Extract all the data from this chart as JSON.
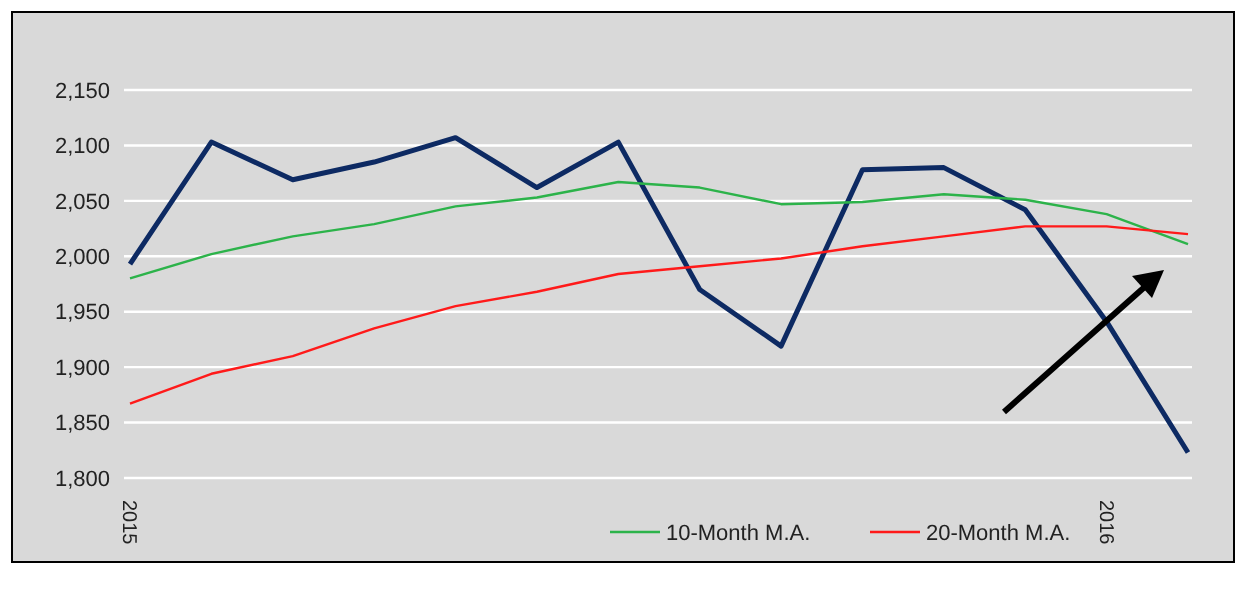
{
  "chart_data": {
    "type": "line",
    "categories": [
      "2015",
      null,
      null,
      null,
      null,
      null,
      null,
      null,
      null,
      null,
      null,
      null,
      "2016",
      null
    ],
    "ylim": [
      1800,
      2150
    ],
    "yticks": [
      {
        "value": 1800,
        "label": "1,800"
      },
      {
        "value": 1850,
        "label": "1,850"
      },
      {
        "value": 1900,
        "label": "1,900"
      },
      {
        "value": 1950,
        "label": "1,950"
      },
      {
        "value": 2000,
        "label": "2,000"
      },
      {
        "value": 2050,
        "label": "2,050"
      },
      {
        "value": 2100,
        "label": "2,100"
      },
      {
        "value": 2150,
        "label": "2,150"
      }
    ],
    "grid": "y",
    "legend": "bottom",
    "line_style": "solid",
    "series": [
      {
        "color": "#0d2a63",
        "values": [
          1993,
          2103,
          2069,
          2085,
          2107,
          2062,
          2103,
          1970,
          1919,
          2078,
          2080,
          2042,
          1941,
          1823
        ]
      },
      {
        "name": "10-Month M.A.",
        "color": "#2cb34a",
        "values": [
          1980,
          2002,
          2018,
          2029,
          2045,
          2053,
          2067,
          2062,
          2047,
          2049,
          2056,
          2051,
          2038,
          2011
        ]
      },
      {
        "name": "20-Month M.A.",
        "color": "#ff1a1a",
        "values": [
          1867,
          1894,
          1910,
          1935,
          1955,
          1968,
          1984,
          1991,
          1998,
          2009,
          2018,
          2027,
          2027,
          2020
        ]
      }
    ]
  }
}
